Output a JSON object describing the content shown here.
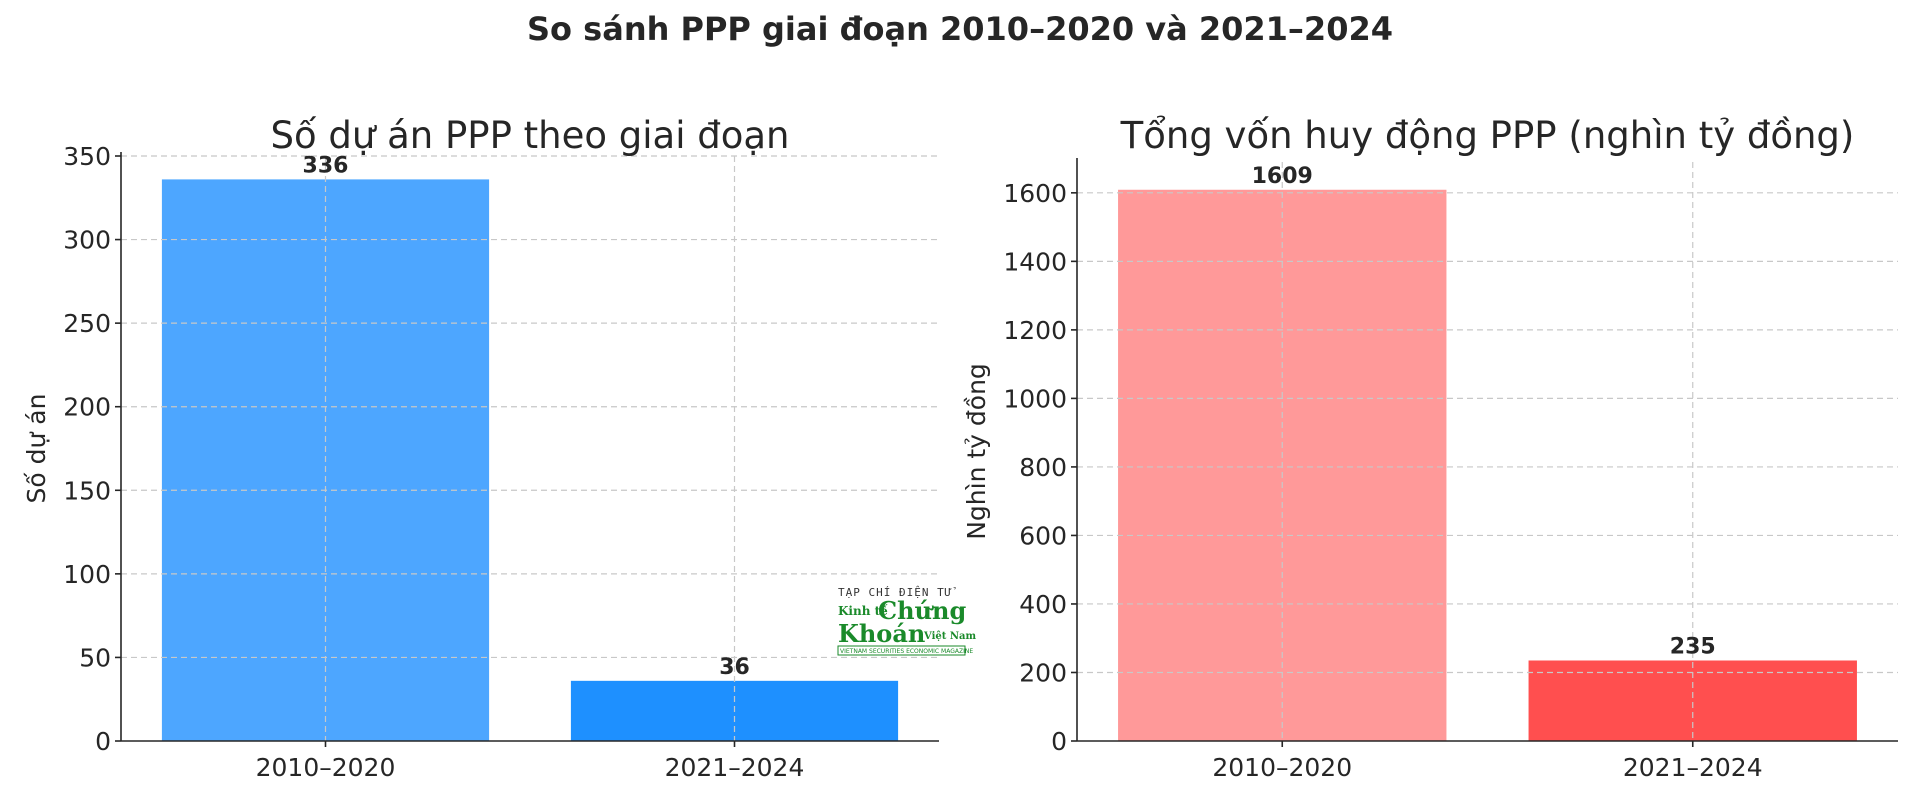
{
  "figure_title": "So sánh PPP giai đoạn 2010–2020 và 2021–2024",
  "chart_data": [
    {
      "type": "bar",
      "title": "Số dự án PPP theo giai đoạn",
      "xlabel": "",
      "ylabel": "Số dự án",
      "categories": [
        "2010–2020",
        "2021–2024"
      ],
      "values": [
        336,
        36
      ],
      "value_labels": [
        "336",
        "36"
      ],
      "colors": [
        "#4da6ff",
        "#1e90ff"
      ],
      "ylim": [
        0,
        350
      ],
      "yticks": [
        0,
        50,
        100,
        150,
        200,
        250,
        300,
        350
      ],
      "grid": true,
      "legend": null
    },
    {
      "type": "bar",
      "title": "Tổng vốn huy động PPP (nghìn tỷ đồng)",
      "xlabel": "",
      "ylabel": "Nghìn tỷ đồng",
      "categories": [
        "2010–2020",
        "2021–2024"
      ],
      "values": [
        1609,
        235
      ],
      "value_labels": [
        "1609",
        "235"
      ],
      "colors": [
        "#ff9999",
        "#ff4f4f"
      ],
      "ylim": [
        0,
        1690
      ],
      "yticks": [
        0,
        200,
        400,
        600,
        800,
        1000,
        1200,
        1400,
        1600
      ],
      "grid": true,
      "legend": null
    }
  ],
  "watermark": {
    "line1": "TẠP CHÍ ĐIỆN TỬ",
    "line2a": "Kinh tế",
    "line2b": "Chứng",
    "line3a": "Khoán",
    "line3b": "Việt Nam",
    "line4": "VIETNAM SECURITIES ECONOMIC MAGAZINE"
  }
}
